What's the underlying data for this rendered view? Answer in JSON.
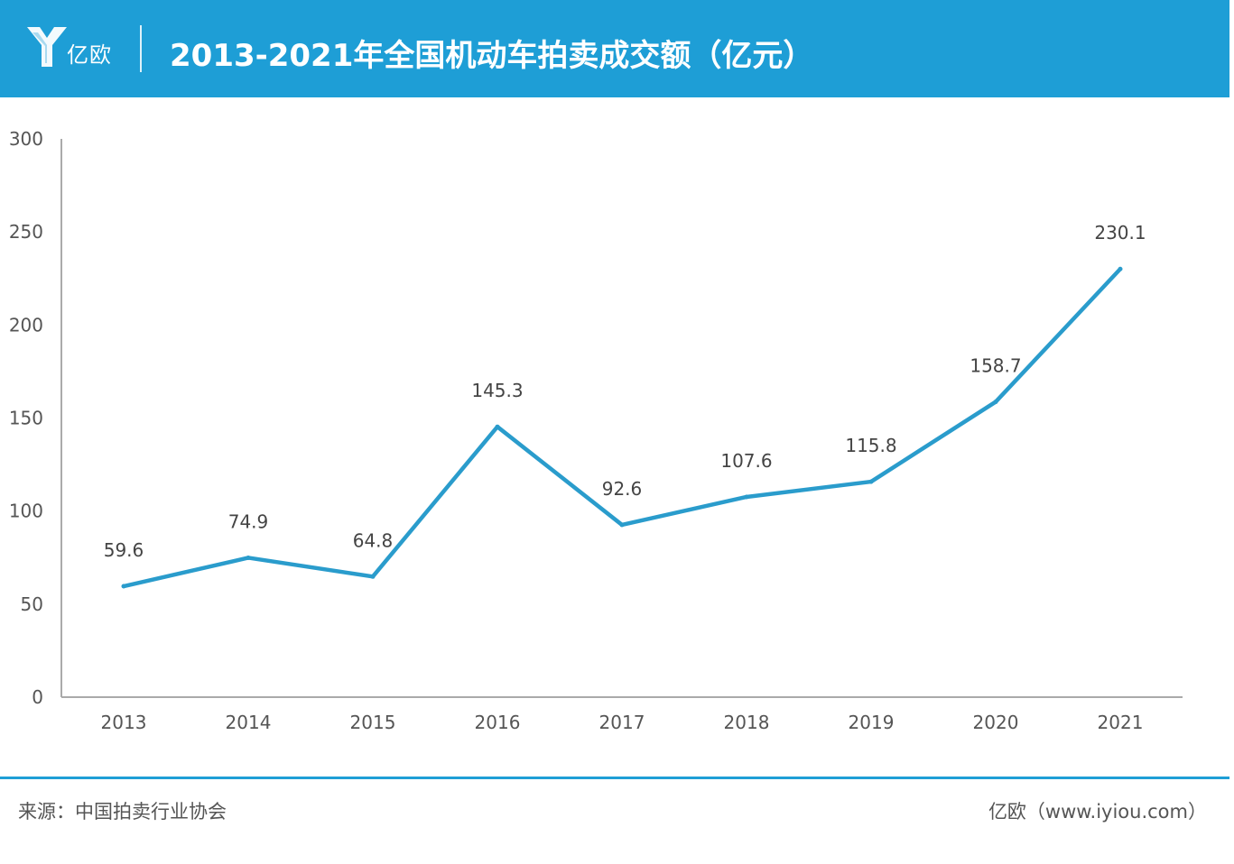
{
  "header": {
    "logo_text": "亿欧",
    "title": "2013-2021年全国机动车拍卖成交额（亿元）",
    "brand_color": "#1e9ed6"
  },
  "chart_data": {
    "type": "line",
    "title": "2013-2021年全国机动车拍卖成交额（亿元）",
    "xlabel": "",
    "ylabel": "",
    "categories": [
      "2013",
      "2014",
      "2015",
      "2016",
      "2017",
      "2018",
      "2019",
      "2020",
      "2021"
    ],
    "values": [
      59.6,
      74.9,
      64.8,
      145.3,
      92.6,
      107.6,
      115.8,
      158.7,
      230.1
    ],
    "data_labels": [
      "59.6",
      "74.9",
      "64.8",
      "145.3",
      "92.6",
      "107.6",
      "115.8",
      "158.7",
      "230.1"
    ],
    "ylim": [
      0,
      300
    ],
    "yticks": [
      0,
      50,
      100,
      150,
      200,
      250,
      300
    ],
    "grid": false,
    "line_color": "#2a9ccc"
  },
  "footer": {
    "source": "来源：中国拍卖行业协会",
    "credit": "亿欧（www.iyiou.com）"
  }
}
